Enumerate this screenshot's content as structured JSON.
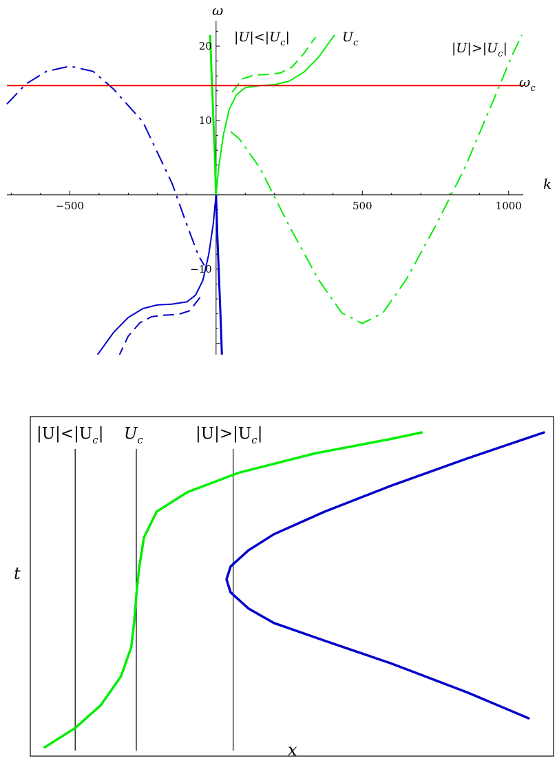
{
  "chart_data": [
    {
      "type": "line",
      "xlabel": "k",
      "ylabel": "ω",
      "xlim": [
        -715,
        1050
      ],
      "ylim": [
        -21.5,
        22.5
      ],
      "x_ticks": [
        -500,
        500,
        1000
      ],
      "x_tick_labels": [
        "−500",
        "500",
        "1000"
      ],
      "y_ticks": [
        -10,
        10,
        20
      ],
      "y_tick_labels": [
        "−10",
        "10",
        "20"
      ],
      "annotations": {
        "slow": "|U|<|U",
        "crit": "U",
        "fast": "|U|>|U",
        "sub": "c",
        "omega_c_main": "ω",
        "omega_c_sub": "c"
      },
      "omega_c": 14.7,
      "colors": {
        "green": "#00ee00",
        "blue": "#0000cc",
        "red": "#ee0000"
      },
      "series": [
        {
          "key": "green-solid-crit",
          "color": "green",
          "style": "solid",
          "points": [
            [
              0,
              0
            ],
            [
              10,
              4
            ],
            [
              25,
              8
            ],
            [
              45,
              11.5
            ],
            [
              70,
              13.5
            ],
            [
              100,
              14.4
            ],
            [
              150,
              14.7
            ],
            [
              200,
              14.8
            ],
            [
              250,
              15.3
            ],
            [
              300,
              16.5
            ],
            [
              350,
              18.5
            ],
            [
              405,
              21.5
            ]
          ]
        },
        {
          "key": "green-dashed",
          "color": "green",
          "style": "dashed",
          "points": [
            [
              55,
              13.8
            ],
            [
              90,
              15.6
            ],
            [
              130,
              16.1
            ],
            [
              180,
              16.2
            ],
            [
              220,
              16.4
            ],
            [
              260,
              17.2
            ],
            [
              300,
              19.0
            ],
            [
              340,
              21.2
            ]
          ]
        },
        {
          "key": "green-dashdot-fast",
          "color": "green",
          "style": "dashdot",
          "points": [
            [
              50,
              8.5
            ],
            [
              80,
              7.5
            ],
            [
              150,
              3.6
            ],
            [
              250,
              -4.2
            ],
            [
              350,
              -11.4
            ],
            [
              430,
              -15.9
            ],
            [
              500,
              -17.3
            ],
            [
              570,
              -15.9
            ],
            [
              650,
              -11.4
            ],
            [
              750,
              -4.2
            ],
            [
              850,
              3.6
            ],
            [
              950,
              12.9
            ],
            [
              1010,
              18.6
            ],
            [
              1045,
              21.5
            ]
          ]
        },
        {
          "key": "green-steep",
          "color": "green",
          "style": "thick",
          "points": [
            [
              -20,
              21.5
            ],
            [
              -16,
              17
            ],
            [
              -12,
              13
            ],
            [
              -8,
              9
            ],
            [
              -4,
              5
            ],
            [
              0,
              0
            ]
          ]
        },
        {
          "key": "blue-solid",
          "color": "blue",
          "style": "solid",
          "points": [
            [
              0,
              0
            ],
            [
              -10,
              -4
            ],
            [
              -25,
              -8
            ],
            [
              -45,
              -11.5
            ],
            [
              -70,
              -13.5
            ],
            [
              -100,
              -14.4
            ],
            [
              -150,
              -14.7
            ],
            [
              -200,
              -14.8
            ],
            [
              -250,
              -15.3
            ],
            [
              -300,
              -16.5
            ],
            [
              -350,
              -18.5
            ],
            [
              -405,
              -21.5
            ]
          ]
        },
        {
          "key": "blue-dashed",
          "color": "blue",
          "style": "dashed",
          "points": [
            [
              -55,
              -13.8
            ],
            [
              -90,
              -15.6
            ],
            [
              -130,
              -16.1
            ],
            [
              -180,
              -16.2
            ],
            [
              -220,
              -16.4
            ],
            [
              -260,
              -17.2
            ],
            [
              -300,
              -19.0
            ],
            [
              -330,
              -21.5
            ]
          ]
        },
        {
          "key": "blue-dashdot",
          "color": "blue",
          "style": "dashdot",
          "points": [
            [
              -715,
              12.2
            ],
            [
              -650,
              14.9
            ],
            [
              -580,
              16.6
            ],
            [
              -500,
              17.3
            ],
            [
              -420,
              16.6
            ],
            [
              -350,
              14.2
            ],
            [
              -250,
              9.8
            ],
            [
              -150,
              1.5
            ],
            [
              -100,
              -4.0
            ],
            [
              -60,
              -8.2
            ],
            [
              -40,
              -9.5
            ]
          ]
        },
        {
          "key": "blue-steep",
          "color": "blue",
          "style": "thick",
          "points": [
            [
              0,
              0
            ],
            [
              4,
              -5
            ],
            [
              8,
              -9
            ],
            [
              12,
              -13
            ],
            [
              16,
              -17
            ],
            [
              20,
              -21.5
            ]
          ]
        },
        {
          "key": "red-omega-c",
          "color": "red",
          "style": "solid",
          "points": [
            [
              -715,
              14.7
            ],
            [
              1050,
              14.7
            ]
          ]
        }
      ]
    },
    {
      "type": "line",
      "xlabel": "x",
      "ylabel": "t",
      "xlim": [
        0,
        100
      ],
      "ylim": [
        0,
        100
      ],
      "annotations": {
        "slow": "|U|<|U",
        "crit": "U",
        "fast": "|U|>|U",
        "sub": "c"
      },
      "reference_lines_x": [
        8,
        20,
        39
      ],
      "series": [
        {
          "key": "green",
          "color": "green",
          "points": [
            [
              2,
              1
            ],
            [
              8,
              7
            ],
            [
              13,
              14
            ],
            [
              17,
              23
            ],
            [
              19,
              32
            ],
            [
              19.6,
              40
            ],
            [
              20,
              48
            ],
            [
              20.5,
              56
            ],
            [
              21.5,
              66
            ],
            [
              24,
              74
            ],
            [
              30,
              80
            ],
            [
              40,
              86
            ],
            [
              55,
              92
            ],
            [
              70,
              96.5
            ],
            [
              76,
              98.5
            ]
          ]
        },
        {
          "key": "blue",
          "color": "blue",
          "points": [
            [
              100,
              98.5
            ],
            [
              85,
              90.5
            ],
            [
              70,
              82
            ],
            [
              57,
              74
            ],
            [
              47,
              67
            ],
            [
              42,
              62
            ],
            [
              38.5,
              57
            ],
            [
              37.7,
              53
            ],
            [
              38.5,
              49
            ],
            [
              42,
              44
            ],
            [
              47,
              39.5
            ],
            [
              57,
              34
            ],
            [
              70,
              27
            ],
            [
              85,
              18
            ],
            [
              94,
              12
            ],
            [
              97,
              10
            ]
          ]
        }
      ]
    }
  ]
}
